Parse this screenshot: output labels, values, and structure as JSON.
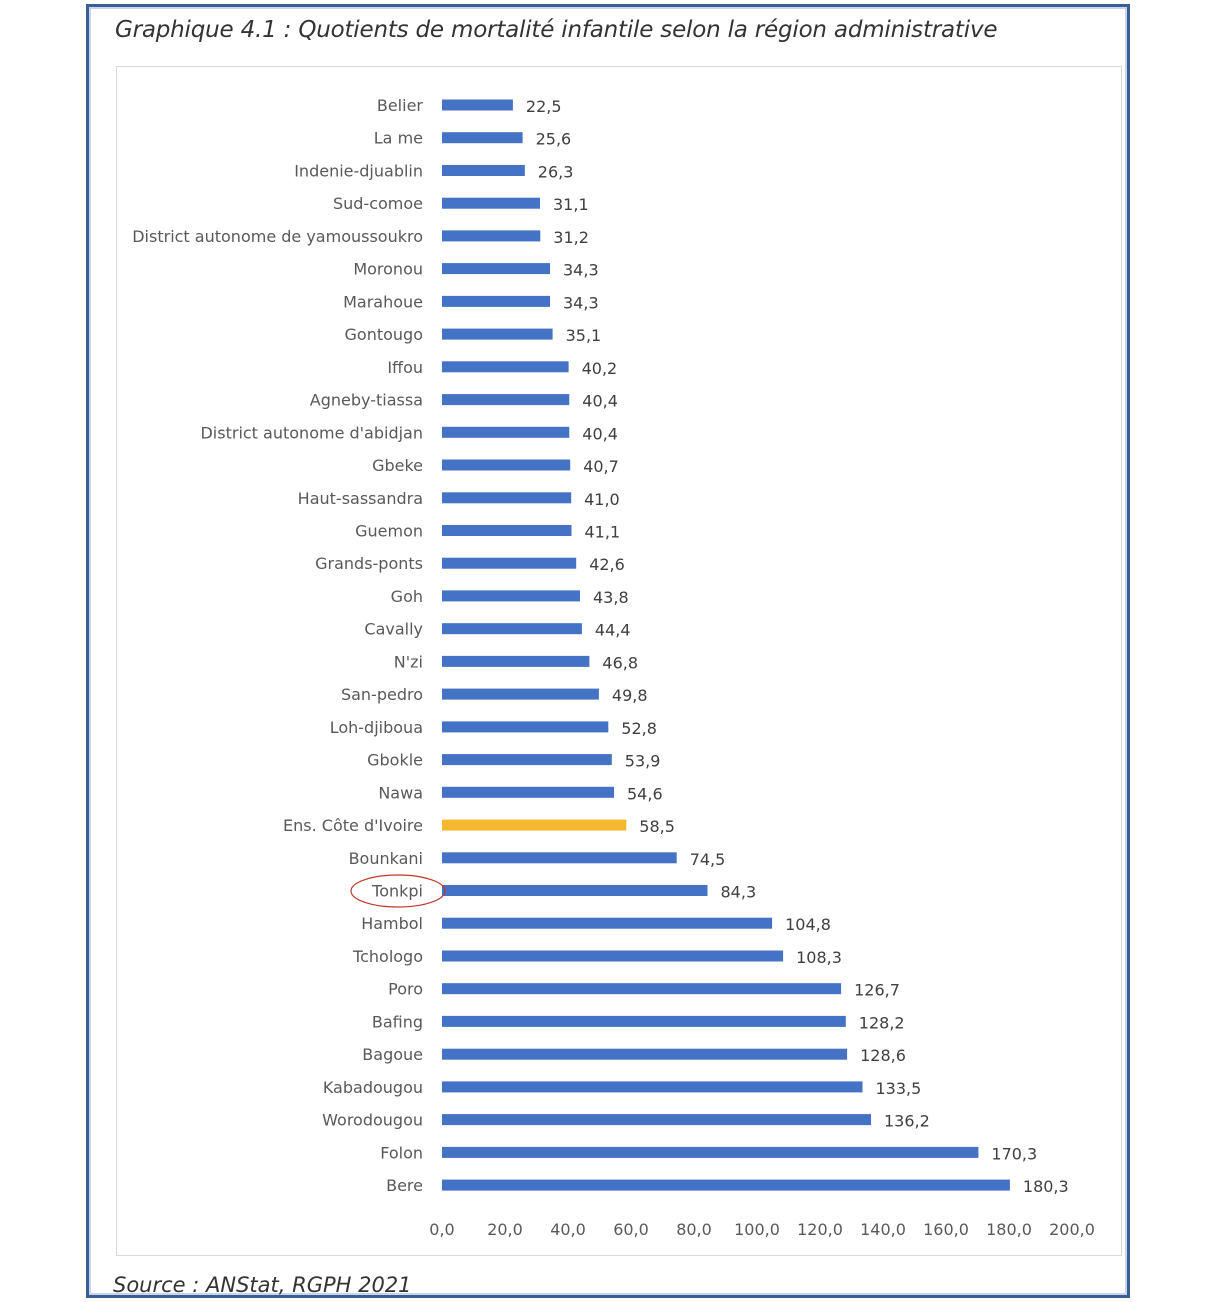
{
  "title": "Graphique 4.1 : Quotients de mortalité infantile selon la région administrative",
  "source": "Source : ANStat, RGPH 2021",
  "colors": {
    "bar": "#4472c4",
    "highlight": "#f5b82e",
    "circle": "#c0392b",
    "frame": "#3a5f95"
  },
  "chart_data": {
    "type": "bar",
    "orientation": "horizontal",
    "title": "Graphique 4.1 : Quotients de mortalité infantile selon la région administrative",
    "xlim": [
      0,
      200
    ],
    "xticks": [
      "0,0",
      "20,0",
      "40,0",
      "60,0",
      "80,0",
      "100,0",
      "120,0",
      "140,0",
      "160,0",
      "180,0",
      "200,0"
    ],
    "xtick_values": [
      0,
      20,
      40,
      60,
      80,
      100,
      120,
      140,
      160,
      180,
      200
    ],
    "grid": false,
    "highlighted_category": "Ens. Côte d'Ivoire",
    "circled_category": "Tonkpi",
    "categories": [
      "Belier",
      "La me",
      "Indenie-djuablin",
      "Sud-comoe",
      "District autonome de yamoussoukro",
      "Moronou",
      "Marahoue",
      "Gontougo",
      "Iffou",
      "Agneby-tiassa",
      "District autonome d'abidjan",
      "Gbeke",
      "Haut-sassandra",
      "Guemon",
      "Grands-ponts",
      "Goh",
      "Cavally",
      "N'zi",
      "San-pedro",
      "Loh-djiboua",
      "Gbokle",
      "Nawa",
      "Ens. Côte d'Ivoire",
      "Bounkani",
      "Tonkpi",
      "Hambol",
      "Tchologo",
      "Poro",
      "Bafing",
      "Bagoue",
      "Kabadougou",
      "Worodougou",
      "Folon",
      "Bere"
    ],
    "values": [
      22.5,
      25.6,
      26.3,
      31.1,
      31.2,
      34.3,
      34.3,
      35.1,
      40.2,
      40.4,
      40.4,
      40.7,
      41.0,
      41.1,
      42.6,
      43.8,
      44.4,
      46.8,
      49.8,
      52.8,
      53.9,
      54.6,
      58.5,
      74.5,
      84.3,
      104.8,
      108.3,
      126.7,
      128.2,
      128.6,
      133.5,
      136.2,
      170.3,
      180.3
    ],
    "value_labels": [
      "22,5",
      "25,6",
      "26,3",
      "31,1",
      "31,2",
      "34,3",
      "34,3",
      "35,1",
      "40,2",
      "40,4",
      "40,4",
      "40,7",
      "41,0",
      "41,1",
      "42,6",
      "43,8",
      "44,4",
      "46,8",
      "49,8",
      "52,8",
      "53,9",
      "54,6",
      "58,5",
      "74,5",
      "84,3",
      "104,8",
      "108,3",
      "126,7",
      "128,2",
      "128,6",
      "133,5",
      "136,2",
      "170,3",
      "180,3"
    ]
  }
}
